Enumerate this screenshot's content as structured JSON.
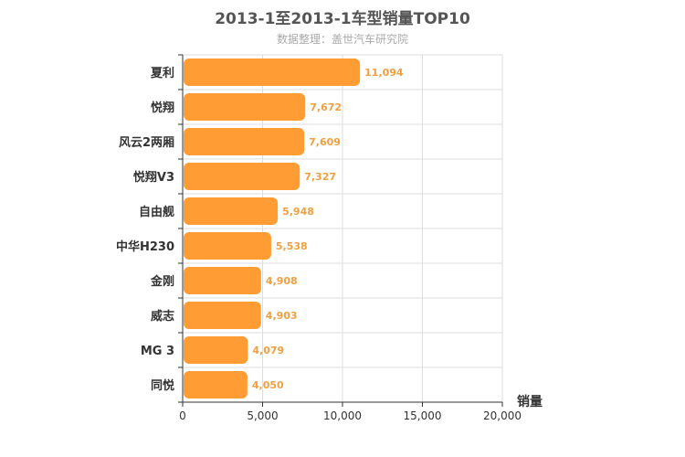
{
  "chart_data": {
    "type": "bar",
    "orientation": "horizontal",
    "title": "2013-1至2013-1车型销量TOP10",
    "subtitle": "数据整理：盖世汽车研究院",
    "categories": [
      "夏利",
      "悦翔",
      "风云2两厢",
      "悦翔V3",
      "自由舰",
      "中华H230",
      "金刚",
      "威志",
      "MG 3",
      "同悦"
    ],
    "values": [
      11094,
      7672,
      7609,
      7327,
      5948,
      5538,
      4908,
      4903,
      4079,
      4050
    ],
    "value_labels": [
      "11,094",
      "7,672",
      "7,609",
      "7,327",
      "5,948",
      "5,538",
      "4,908",
      "4,903",
      "4,079",
      "4,050"
    ],
    "xlabel": "销量",
    "ylabel": "",
    "xlim": [
      0,
      20000
    ],
    "x_ticks": [
      0,
      5000,
      10000,
      15000,
      20000
    ],
    "x_tick_labels": [
      "0",
      "5,000",
      "10,000",
      "15,000",
      "20,000"
    ],
    "grid": true,
    "bar_color": "#ff9c34"
  }
}
